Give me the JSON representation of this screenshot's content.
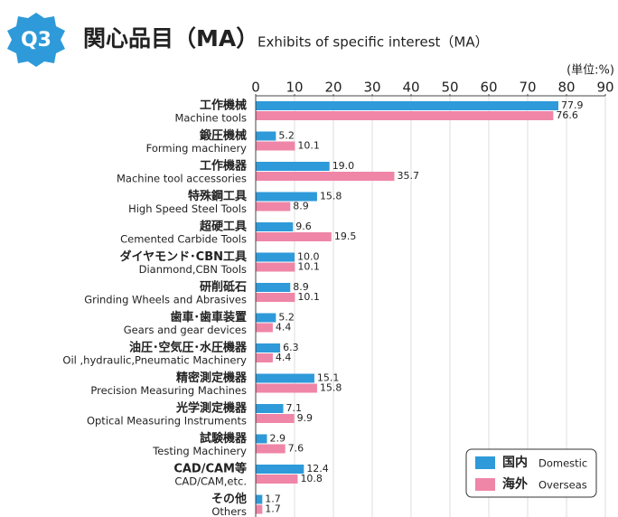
{
  "chart_data": {
    "type": "barh",
    "badge": "Q3",
    "title": "関心品目（MA）",
    "subtitle": "Exhibits of specific interest（MA）",
    "unit_label": "(単位:%)",
    "categories": [
      "工作機械",
      "鍛圧機械",
      "工作機器",
      "特殊鋼工具",
      "超硬工具",
      "ダイヤモンド･CBN工具",
      "研削砥石",
      "歯車･歯車装置",
      "油圧･空気圧･水圧機器",
      "精密測定機器",
      "光学測定機器",
      "試験機器",
      "CAD/CAM等",
      "その他"
    ],
    "category_subtitles": [
      "Machine tools",
      "Forming machinery",
      "Machine tool accessories",
      "High Speed Steel Tools",
      "Cemented Carbide Tools",
      "Dianmond,CBN Tools",
      "Grinding Wheels and Abrasives",
      "Gears and gear devices",
      "Oil ,hydraulic,Pneumatic Machinery",
      "Precision Measuring Machines",
      "Optical Measuring Instruments",
      "Testing Machinery",
      "CAD/CAM,etc.",
      "Others"
    ],
    "series": [
      {
        "name": "国内",
        "name_en": "Domestic",
        "color": "#2e9ad9",
        "values": [
          77.9,
          5.2,
          19.0,
          15.8,
          9.6,
          10.0,
          8.9,
          5.2,
          6.3,
          15.1,
          7.1,
          2.9,
          12.4,
          1.7
        ],
        "value_labels": [
          "77.9",
          "5.2",
          "19.0",
          "15.8",
          "9.6",
          "10.0",
          "8.9",
          "5.2",
          "6.3",
          "15.1",
          "7.1",
          "2.9",
          "12.4",
          "1.7"
        ]
      },
      {
        "name": "海外",
        "name_en": "Overseas",
        "color": "#ef86a7",
        "values": [
          76.6,
          10.1,
          35.7,
          8.9,
          19.5,
          10.1,
          10.1,
          4.4,
          4.4,
          15.8,
          9.9,
          7.6,
          10.8,
          1.7
        ],
        "value_labels": [
          "76.6",
          "10.1",
          "35.7",
          "8.9",
          "19.5",
          "10.1",
          "10.1",
          "4.4",
          "4.4",
          "15.8",
          "9.9",
          "7.6",
          "10.8",
          "1.7"
        ]
      }
    ],
    "xlim": [
      0,
      90
    ],
    "xticks": [
      0,
      10,
      20,
      30,
      40,
      50,
      60,
      70,
      80,
      90
    ],
    "grid": true,
    "legend": "lower right"
  }
}
